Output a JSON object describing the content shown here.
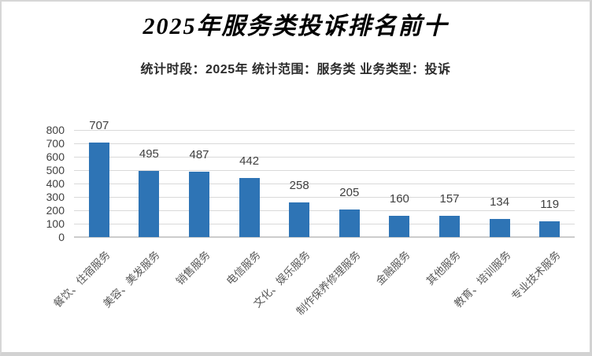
{
  "title": "2025年服务类投诉排名前十",
  "subtitle": "统计时段：2025年 统计范围：服务类 业务类型：投诉",
  "chart_data": {
    "type": "bar",
    "title": "2025年服务类投诉排名前十",
    "subtitle": "统计时段：2025年 统计范围：服务类 业务类型：投诉",
    "categories": [
      "餐饮、住宿服务",
      "美容、美发服务",
      "销售服务",
      "电信服务",
      "文化、娱乐服务",
      "制作保养修理服务",
      "金融服务",
      "其他服务",
      "教育、培训服务",
      "专业技术服务"
    ],
    "values": [
      707,
      495,
      487,
      442,
      258,
      205,
      160,
      157,
      134,
      119
    ],
    "xlabel": "",
    "ylabel": "",
    "ylim": [
      0,
      800
    ],
    "ytick_interval": 100,
    "yticks": [
      0,
      100,
      200,
      300,
      400,
      500,
      600,
      700,
      800
    ],
    "grid": true,
    "legend_position": "none",
    "data_labels_shown": true,
    "colors": {
      "bar": "#2e74b5",
      "gridline": "#d9d9d9",
      "baseline": "#cccccc",
      "value_label": "#404040",
      "axis_label": "#595959",
      "frame_border": "#d2d2d2"
    }
  }
}
